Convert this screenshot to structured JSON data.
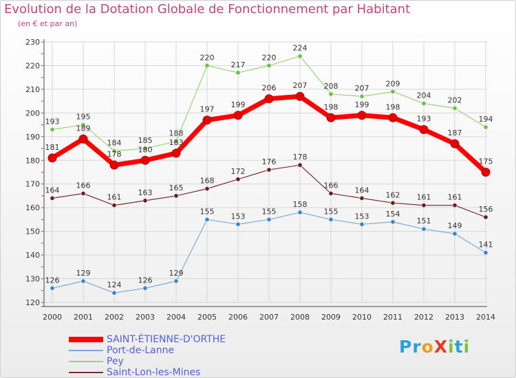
{
  "header": {
    "title": "Evolution de la Dotation Globale de Fonctionnement par Habitant",
    "subtitle": "(en € et par an)"
  },
  "logo": {
    "text": "ProXiti",
    "parts": [
      "Pr",
      "o",
      "X",
      "i",
      "t",
      "i"
    ]
  },
  "colors": {
    "title": "#c2447a",
    "axis_text": "#333333",
    "grid": "#d6d6d6",
    "legend_text": "#5560d8"
  },
  "chart_data": {
    "type": "line",
    "title": "Evolution de la Dotation Globale de Fonctionnement par Habitant",
    "subtitle": "(en € et par an)",
    "xlabel": "",
    "ylabel": "",
    "x": [
      "2000",
      "2001",
      "2002",
      "2003",
      "2004",
      "2005",
      "2006",
      "2007",
      "2008",
      "2009",
      "2010",
      "2011",
      "2012",
      "2013",
      "2014"
    ],
    "ylim": [
      120,
      230
    ],
    "yticks": [
      120,
      130,
      140,
      150,
      160,
      170,
      180,
      190,
      200,
      210,
      220,
      230
    ],
    "grid": true,
    "legend": "bottom-left",
    "series": [
      {
        "name": "SAINT-ÉTIENNE-D'ORTHE",
        "color": "#ff0000",
        "marker": "#e80000",
        "width": 7,
        "values": [
          181,
          189,
          178,
          180,
          183,
          197,
          199,
          206,
          207,
          198,
          199,
          198,
          193,
          187,
          175
        ]
      },
      {
        "name": "Port-de-Lanne",
        "color": "#7aa9d6",
        "marker": "#3f86c8",
        "width": 1.2,
        "values": [
          126,
          129,
          124,
          126,
          129,
          155,
          153,
          155,
          158,
          155,
          153,
          154,
          151,
          149,
          141
        ]
      },
      {
        "name": "Pey",
        "color": "#9ad27a",
        "marker": "#6cc04a",
        "width": 1.2,
        "values": [
          193,
          195,
          184,
          185,
          188,
          220,
          217,
          220,
          224,
          208,
          207,
          209,
          204,
          202,
          194
        ]
      },
      {
        "name": "Saint-Lon-les-Mines",
        "color": "#7a2e2e",
        "marker": "#6a2020",
        "width": 1.2,
        "values": [
          164,
          166,
          161,
          163,
          165,
          168,
          172,
          176,
          178,
          166,
          164,
          162,
          161,
          161,
          156
        ]
      }
    ]
  }
}
